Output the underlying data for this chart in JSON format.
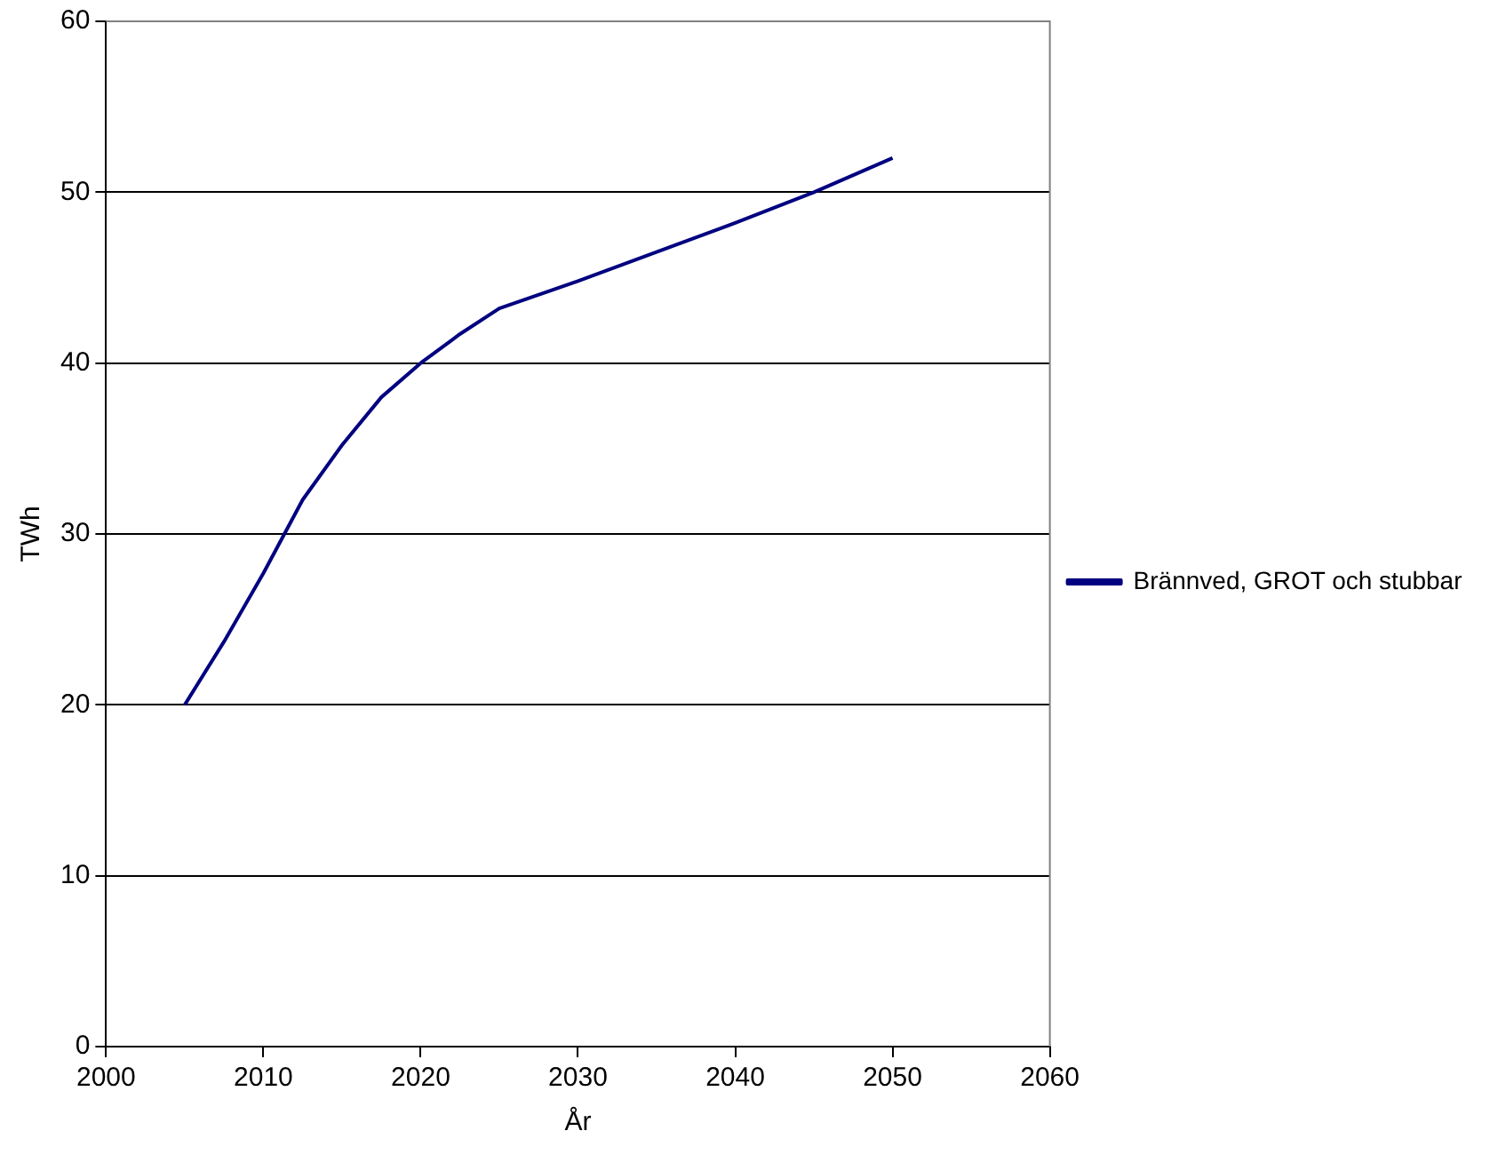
{
  "chart_data": {
    "type": "line",
    "xlabel": "År",
    "ylabel": "TWh",
    "x": [
      2005,
      2007.5,
      2010,
      2012.5,
      2015,
      2017.5,
      2020,
      2022.5,
      2025,
      2030,
      2035,
      2040,
      2045,
      2050
    ],
    "series": [
      {
        "name": "Brännved, GROT och stubbar",
        "color": "#000080",
        "values": [
          20,
          23.7,
          27.7,
          32,
          35.2,
          38,
          40,
          41.7,
          43.2,
          44.8,
          46.5,
          48.2,
          50,
          52
        ]
      }
    ],
    "xlim": [
      2000,
      2060
    ],
    "xticks": [
      2000,
      2010,
      2020,
      2030,
      2040,
      2050,
      2060
    ],
    "ylim": [
      0,
      60
    ],
    "yticks": [
      0,
      10,
      20,
      30,
      40,
      50,
      60
    ],
    "grid": "y",
    "legend": "right",
    "marker": "none",
    "line_style": "solid"
  }
}
